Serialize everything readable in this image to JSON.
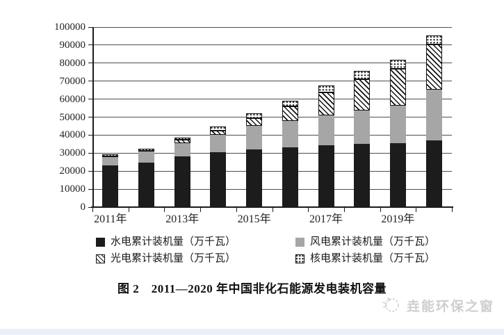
{
  "figure": {
    "caption": "图 2　2011—2020 年中国非化石能源发电装机容量"
  },
  "legend": {
    "items": [
      {
        "label": "水电累计装机量（万千瓦）",
        "swatch": "black-solid"
      },
      {
        "label": "风电累计装机量（万千瓦）",
        "swatch": "gray-solid"
      },
      {
        "label": "光电累计装机量（万千瓦）",
        "swatch": "diagonal-hatch"
      },
      {
        "label": "核电累计装机量（万千瓦）",
        "swatch": "dot-pattern"
      }
    ]
  },
  "watermark": {
    "text": "垚能环保之窗",
    "icon": "sketch-circle-logo-icon"
  },
  "colors": {
    "hydro": "#1c1c1c",
    "wind": "#a6a6a6",
    "pattern_ink": "#111111",
    "gridline": "#4d4d4d",
    "watermark_text": "#cccccc",
    "bottom_strip": "#eaf0f8"
  },
  "chart_data": {
    "type": "bar",
    "stacked": true,
    "title": "图 2　2011—2020 年中国非化石能源发电装机容量",
    "categories": [
      "2011年",
      "2012年",
      "2013年",
      "2014年",
      "2015年",
      "2016年",
      "2017年",
      "2018年",
      "2019年",
      "2020年"
    ],
    "x_tick_labels": [
      "2011年",
      "2013年",
      "2015年",
      "2017年",
      "2019年"
    ],
    "series": [
      {
        "name": "水电累计装机量（万千瓦）",
        "pattern": "hydro",
        "values": [
          23298,
          24890,
          28044,
          30486,
          31954,
          33211,
          34411,
          35259,
          35640,
          37016
        ]
      },
      {
        "name": "风电累计装机量（万千瓦）",
        "pattern": "wind",
        "values": [
          4623,
          6083,
          7652,
          9657,
          13075,
          14864,
          16400,
          18427,
          20915,
          28153
        ]
      },
      {
        "name": "光电累计装机量（万千瓦）",
        "pattern": "solar",
        "values": [
          222,
          341,
          1589,
          2486,
          4318,
          7742,
          13042,
          17463,
          20418,
          25343
        ]
      },
      {
        "name": "核电累计装机量（万千瓦）",
        "pattern": "nuclear",
        "values": [
          1257,
          1257,
          1466,
          2008,
          2717,
          3364,
          3582,
          4466,
          4874,
          4989
        ]
      }
    ],
    "totals": [
      29400,
      32571,
      38751,
      44637,
      52064,
      59181,
      67435,
      75615,
      81847,
      95501
    ],
    "xlabel": "",
    "ylabel": "",
    "ylim": [
      0,
      100000
    ],
    "ytick_step": 10000,
    "y_tick_labels": [
      "0",
      "10000",
      "20000",
      "30000",
      "40000",
      "50000",
      "60000",
      "70000",
      "80000",
      "90000",
      "100000"
    ],
    "grid": true,
    "legend_position": "bottom"
  }
}
